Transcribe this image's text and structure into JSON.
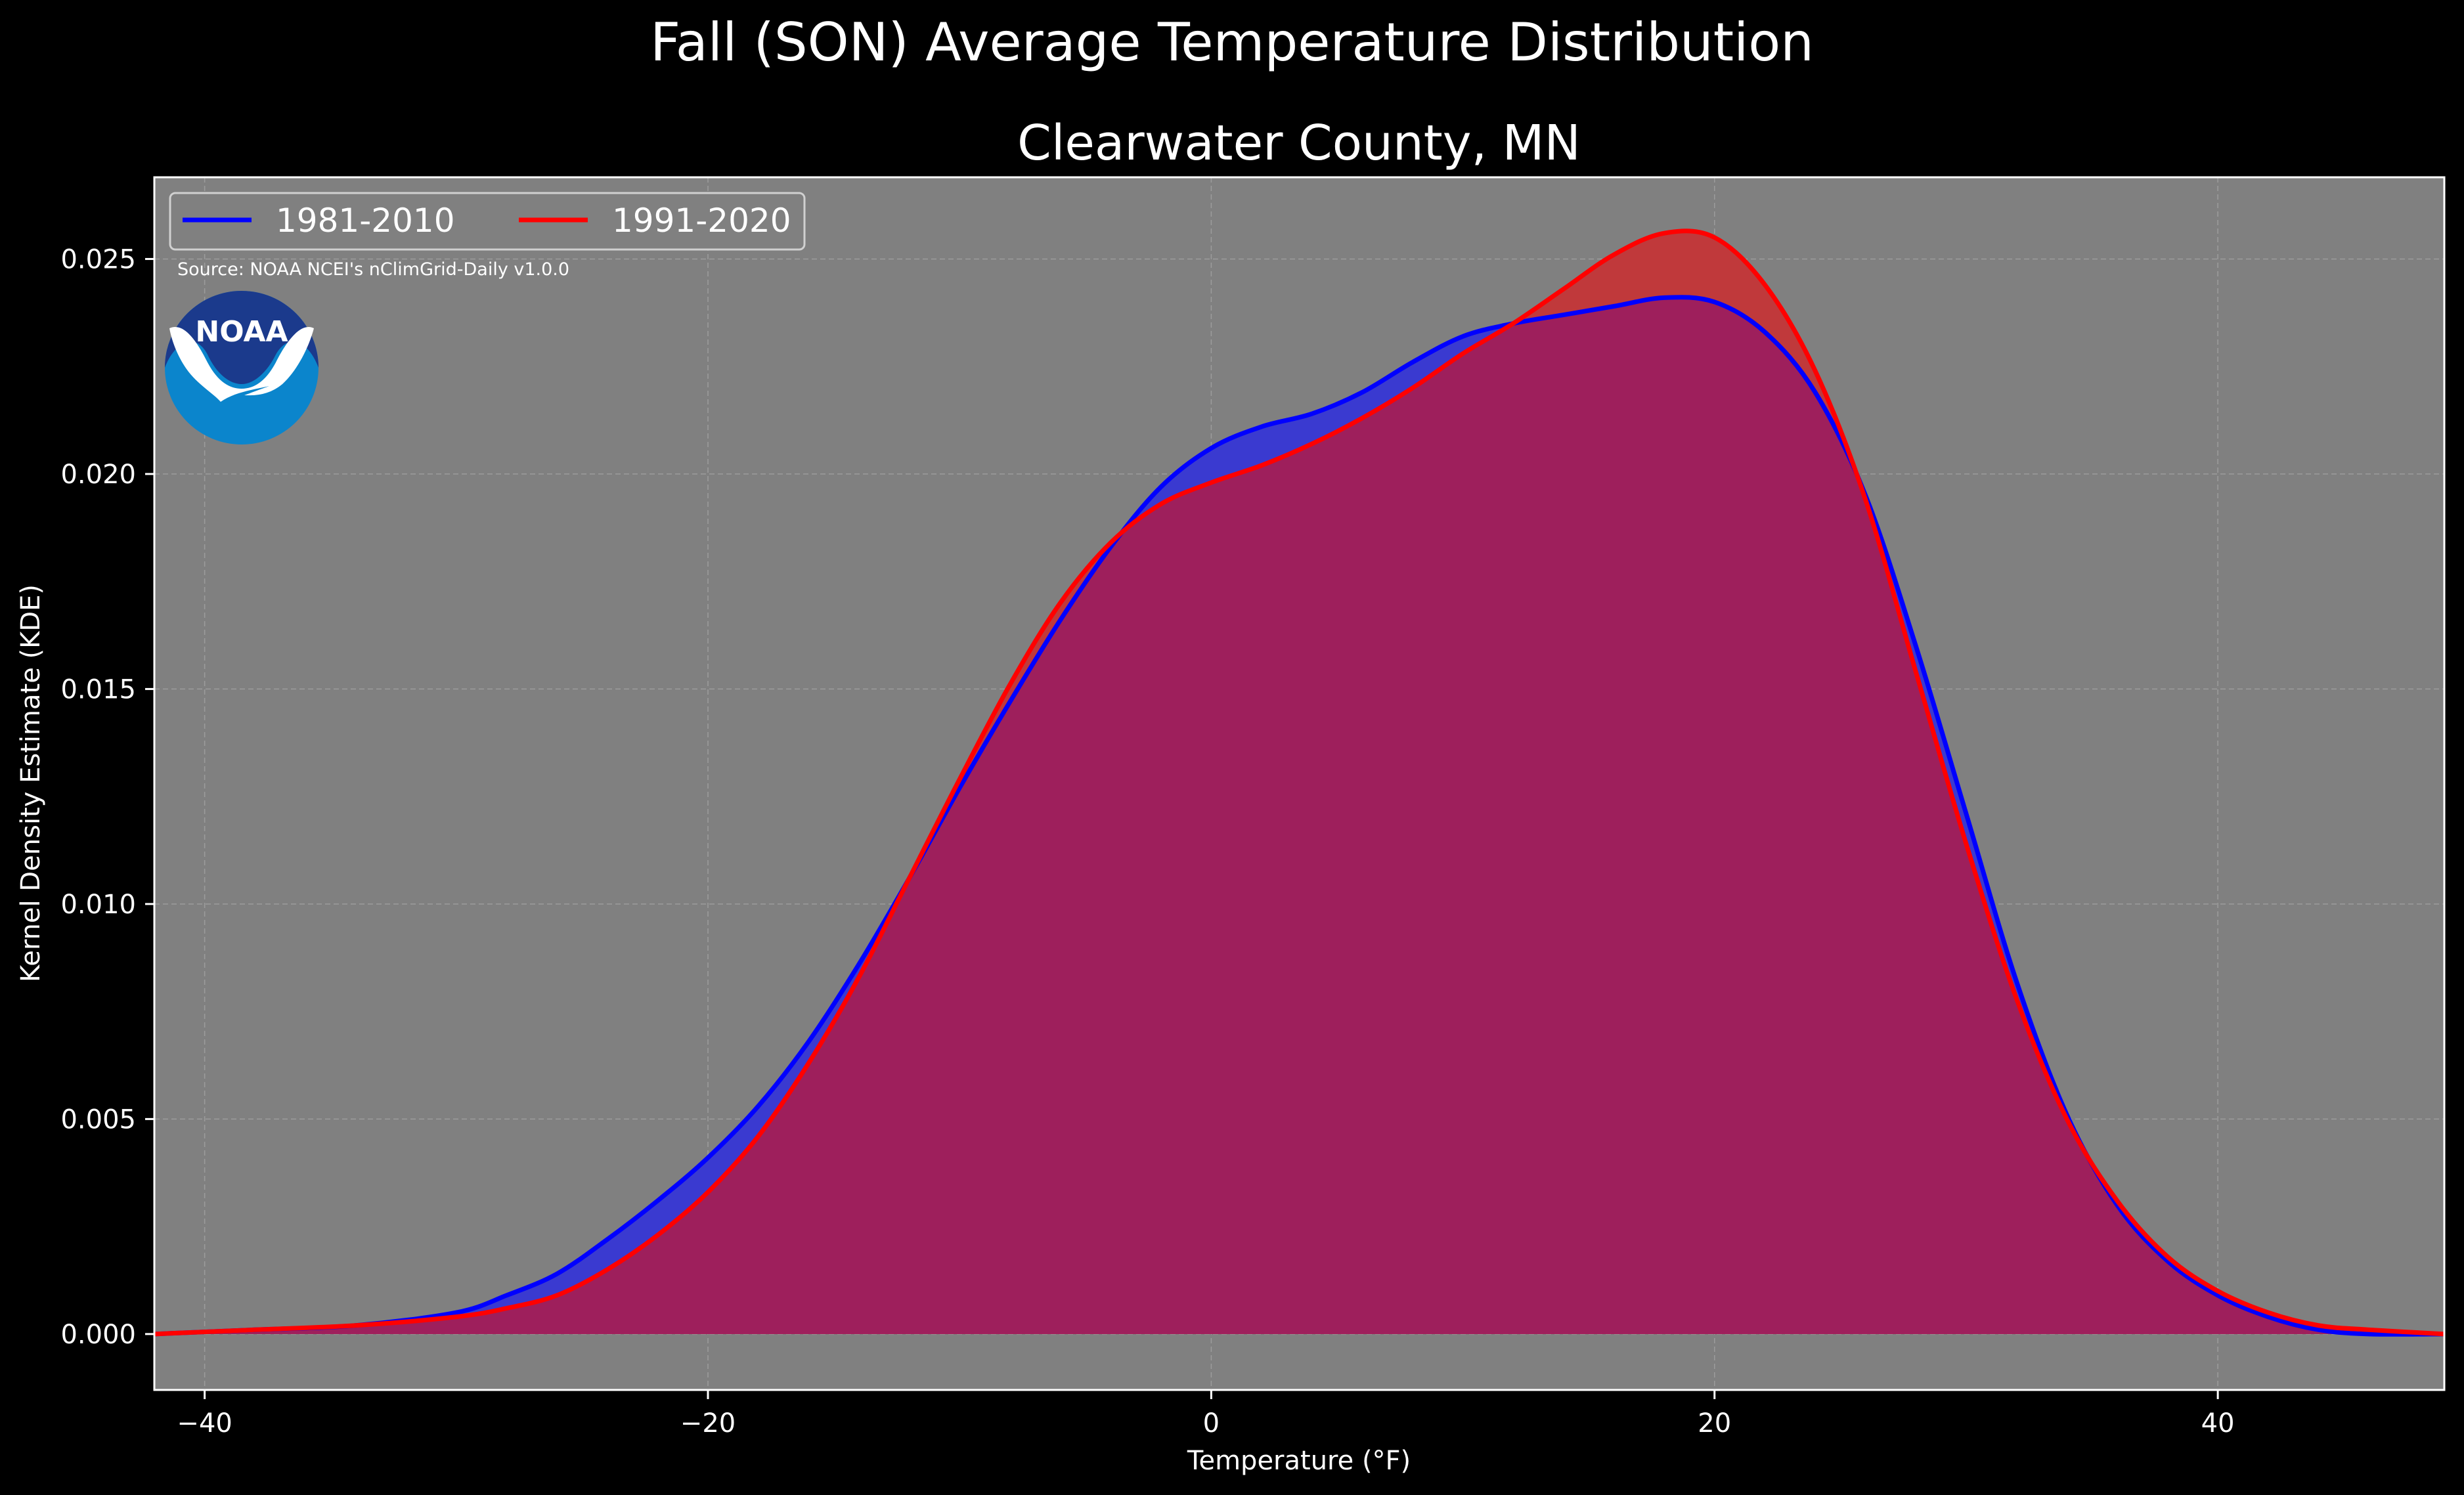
{
  "chart_data": {
    "type": "area",
    "title": "Fall (SON) Average Temperature Distribution",
    "subtitle": "Clearwater County, MN",
    "xlabel": "Temperature ($^\\circ$F)",
    "xlabel_display": "Temperature (°F)",
    "ylabel": "Kernel Density Estimate (KDE)",
    "xlim": [
      -42,
      49
    ],
    "ylim": [
      -0.0013,
      0.0269
    ],
    "x_ticks": [
      -40,
      -20,
      0,
      20,
      40
    ],
    "x_tick_labels": [
      "−40",
      "−20",
      "0",
      "20",
      "40"
    ],
    "y_ticks": [
      0.0,
      0.005,
      0.01,
      0.015,
      0.02,
      0.025
    ],
    "y_tick_labels": [
      "0.000",
      "0.005",
      "0.010",
      "0.015",
      "0.020",
      "0.025"
    ],
    "grid": true,
    "legend_position": "top-left",
    "source": "Source: NOAA NCEI's nClimGrid-Daily v1.0.0",
    "logo_text": "NOAA",
    "colors": {
      "background": "#000000",
      "plot_background": "#808080",
      "series1": "#0000ff",
      "series1_fill": "#3a3ad0",
      "series2": "#ff0000",
      "overlap_fill": "#9e1f5c",
      "series2_fill": "#c0393b",
      "noaa_dark": "#1b3a8c",
      "noaa_light": "#0b85cc"
    },
    "series": [
      {
        "name": "1981-2010",
        "x": [
          -42,
          -38,
          -34,
          -30,
          -28,
          -26,
          -24,
          -22,
          -20,
          -18,
          -16,
          -14,
          -12,
          -10,
          -8,
          -6,
          -4,
          -2,
          0,
          2,
          4,
          6,
          8,
          10,
          12,
          14,
          16,
          18,
          20,
          22,
          24,
          26,
          28,
          30,
          32,
          34,
          36,
          38,
          40,
          42,
          44,
          46,
          49
        ],
        "values": [
          0.0,
          0.0001,
          0.0002,
          0.0005,
          0.0009,
          0.0014,
          0.0022,
          0.0031,
          0.0041,
          0.0053,
          0.0068,
          0.0086,
          0.0106,
          0.0127,
          0.0147,
          0.0166,
          0.0183,
          0.0197,
          0.0206,
          0.0211,
          0.0214,
          0.0219,
          0.0226,
          0.0232,
          0.0235,
          0.0237,
          0.0239,
          0.0241,
          0.024,
          0.0233,
          0.0219,
          0.0195,
          0.016,
          0.0121,
          0.0082,
          0.0051,
          0.003,
          0.0017,
          0.0009,
          0.0004,
          0.0001,
          0.0,
          0.0
        ]
      },
      {
        "name": "1991-2020",
        "x": [
          -42,
          -38,
          -34,
          -30,
          -28,
          -26,
          -24,
          -22,
          -20,
          -18,
          -16,
          -14,
          -12,
          -10,
          -8,
          -6,
          -4,
          -2,
          0,
          2,
          4,
          6,
          8,
          10,
          12,
          14,
          16,
          18,
          20,
          22,
          24,
          26,
          28,
          30,
          32,
          34,
          36,
          38,
          40,
          42,
          44,
          46,
          49
        ],
        "values": [
          0.0,
          0.0001,
          0.0002,
          0.0004,
          0.0006,
          0.0009,
          0.0015,
          0.0023,
          0.0033,
          0.0046,
          0.0063,
          0.0083,
          0.0106,
          0.0129,
          0.0151,
          0.017,
          0.0184,
          0.0193,
          0.0198,
          0.0202,
          0.0207,
          0.0213,
          0.022,
          0.0228,
          0.0235,
          0.0243,
          0.0251,
          0.0256,
          0.0255,
          0.0244,
          0.0224,
          0.0194,
          0.0154,
          0.0114,
          0.0078,
          0.005,
          0.0031,
          0.0018,
          0.001,
          0.0005,
          0.0002,
          0.0001,
          0.0
        ]
      }
    ]
  }
}
